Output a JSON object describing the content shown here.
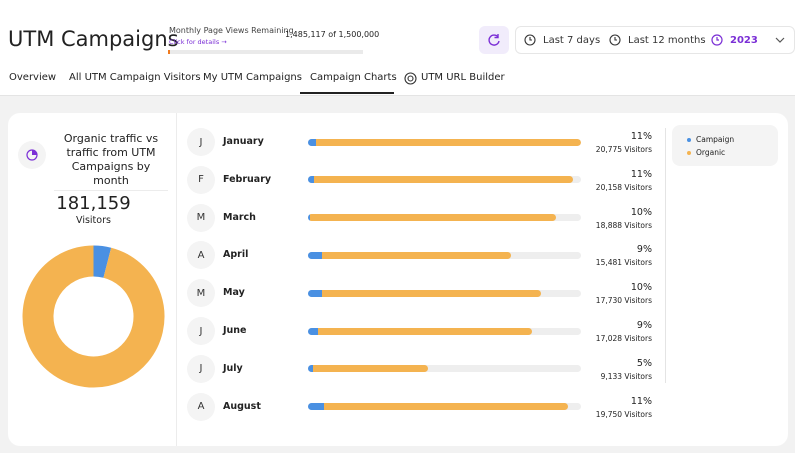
{
  "header": {
    "title": "UTM Campaigns",
    "quota": {
      "label": "Monthly Page Views Remaining",
      "link": "Click for details →",
      "text": "1,485,117 of 1,500,000",
      "remaining": 1485117,
      "total": 1500000,
      "color": "#f07b1f"
    }
  },
  "date_filters": [
    "Last 7 days",
    "Last 12 months",
    "2023"
  ],
  "tabs": [
    "Overview",
    "All UTM Campaign Visitors",
    "My UTM Campaigns",
    "Campaign Charts",
    "UTM URL Builder"
  ],
  "summary": {
    "title": "Organic traffic vs traffic from UTM Campaigns by month",
    "total": "181,159",
    "unit": "Visitors"
  },
  "chart_data": {
    "type": "pie",
    "donut": true,
    "categories": [
      "Campaign",
      "Organic"
    ],
    "values": [
      4,
      96
    ],
    "colors": [
      "#4a90e2",
      "#f4b350"
    ]
  },
  "months": {
    "xlim": [
      0,
      20775
    ],
    "rows": [
      {
        "initial": "J",
        "name": "January",
        "percent": "11%",
        "visitors": "20,775 Visitors",
        "campaign": 600,
        "organic": 20175
      },
      {
        "initial": "F",
        "name": "February",
        "percent": "11%",
        "visitors": "20,158 Visitors",
        "campaign": 450,
        "organic": 19708
      },
      {
        "initial": "M",
        "name": "March",
        "percent": "10%",
        "visitors": "18,888 Visitors",
        "campaign": 150,
        "organic": 18738
      },
      {
        "initial": "A",
        "name": "April",
        "percent": "9%",
        "visitors": "15,481 Visitors",
        "campaign": 1050,
        "organic": 14431
      },
      {
        "initial": "M",
        "name": "May",
        "percent": "10%",
        "visitors": "17,730 Visitors",
        "campaign": 1050,
        "organic": 16680
      },
      {
        "initial": "J",
        "name": "June",
        "percent": "9%",
        "visitors": "17,028 Visitors",
        "campaign": 750,
        "organic": 16278
      },
      {
        "initial": "J",
        "name": "July",
        "percent": "5%",
        "visitors": "9,133 Visitors",
        "campaign": 400,
        "organic": 8733
      },
      {
        "initial": "A",
        "name": "August",
        "percent": "11%",
        "visitors": "19,750 Visitors",
        "campaign": 1200,
        "organic": 18550
      }
    ]
  }
}
